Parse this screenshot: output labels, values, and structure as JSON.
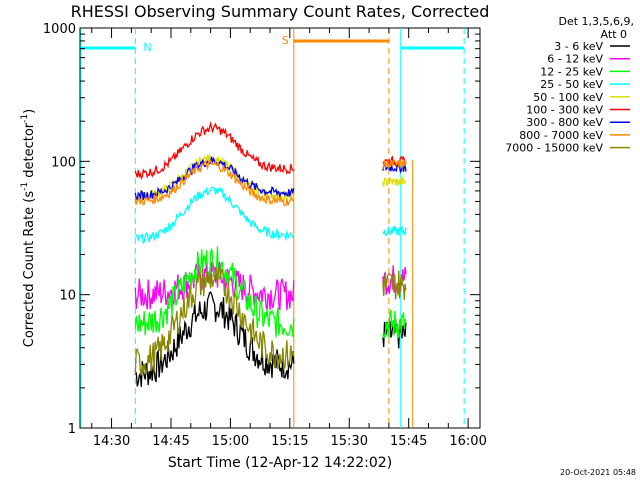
{
  "chart_data": {
    "type": "line",
    "title": "RHESSI Observing Summary Count Rates, Corrected",
    "xlabel": "Start Time (12-Apr-12 14:22:02)",
    "ylabel_main": "Corrected Count Rate (s",
    "ylabel_sup1": "-1",
    "ylabel_mid": " detector",
    "ylabel_sup2": "-1",
    "ylabel_end": ")",
    "y_scale": "log",
    "ylim": [
      1,
      1000
    ],
    "xlim": [
      "14:22:02",
      "16:03:00"
    ],
    "x_ticks": [
      "14:30",
      "14:45",
      "15:00",
      "15:15",
      "15:30",
      "15:45",
      "16:00"
    ],
    "y_ticks": [
      "1",
      "10",
      "100",
      "1000"
    ],
    "legend_header": [
      "Det 1,3,5,6,9,",
      "Att 0"
    ],
    "legend_position": "right",
    "annotations": {
      "N": "N",
      "S": "S"
    },
    "footer": "20-Oct-2021 05:48",
    "series": [
      {
        "name": "3 - 6 keV",
        "color": "#000000",
        "peak": 8,
        "start": 2.5,
        "end": 3,
        "seg2": 5
      },
      {
        "name": "6 - 12 keV",
        "color": "#ff00ff",
        "peak": 14,
        "start": 10,
        "end": 10,
        "seg2": 13
      },
      {
        "name": "12 - 25 keV",
        "color": "#00ff00",
        "peak": 18,
        "start": 6,
        "end": 6,
        "seg2": 6
      },
      {
        "name": "25 - 50 keV",
        "color": "#00ffff",
        "peak": 60,
        "start": 26,
        "end": 28,
        "seg2": 30
      },
      {
        "name": "50 - 100 keV",
        "color": "#dddd00",
        "peak": 105,
        "start": 55,
        "end": 55,
        "seg2": 70
      },
      {
        "name": "100 - 300 keV",
        "color": "#ff0000",
        "peak": 175,
        "start": 80,
        "end": 88,
        "seg2": 100
      },
      {
        "name": "300 - 800 keV",
        "color": "#0000ff",
        "peak": 100,
        "start": 55,
        "end": 58,
        "seg2": 90
      },
      {
        "name": "800 - 7000 keV",
        "color": "#ff8800",
        "peak": 95,
        "start": 50,
        "end": 50,
        "seg2": 95
      },
      {
        "name": "7000 - 15000 keV",
        "color": "#888800",
        "peak": 13,
        "start": 3,
        "end": 3.5,
        "seg2": 12
      }
    ],
    "data_segments": [
      {
        "from": "14:36",
        "to": "15:16"
      },
      {
        "from": "15:38",
        "to": "15:44"
      }
    ],
    "flags": {
      "night_bars": [
        {
          "from": "14:22",
          "to": "14:36"
        },
        {
          "from": "15:43",
          "to": "15:59"
        }
      ],
      "saa_bars": [
        {
          "from": "15:16",
          "to": "15:40"
        }
      ],
      "night_color": "#00ffff",
      "saa_color": "#ff8800"
    }
  }
}
